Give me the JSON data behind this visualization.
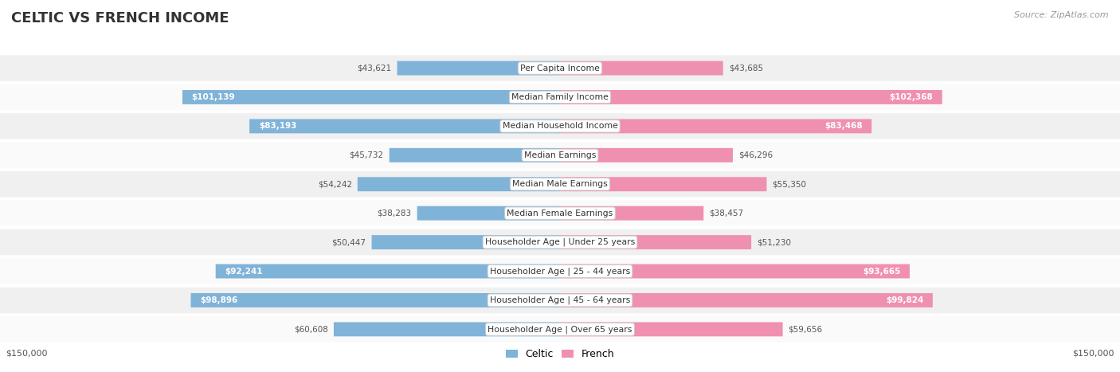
{
  "title": "CELTIC VS FRENCH INCOME",
  "source": "Source: ZipAtlas.com",
  "categories": [
    "Per Capita Income",
    "Median Family Income",
    "Median Household Income",
    "Median Earnings",
    "Median Male Earnings",
    "Median Female Earnings",
    "Householder Age | Under 25 years",
    "Householder Age | 25 - 44 years",
    "Householder Age | 45 - 64 years",
    "Householder Age | Over 65 years"
  ],
  "celtic_values": [
    43621,
    101139,
    83193,
    45732,
    54242,
    38283,
    50447,
    92241,
    98896,
    60608
  ],
  "french_values": [
    43685,
    102368,
    83468,
    46296,
    55350,
    38457,
    51230,
    93665,
    99824,
    59656
  ],
  "celtic_labels": [
    "$43,621",
    "$101,139",
    "$83,193",
    "$45,732",
    "$54,242",
    "$38,283",
    "$50,447",
    "$92,241",
    "$98,896",
    "$60,608"
  ],
  "french_labels": [
    "$43,685",
    "$102,368",
    "$83,468",
    "$46,296",
    "$55,350",
    "$38,457",
    "$51,230",
    "$93,665",
    "$99,824",
    "$59,656"
  ],
  "celtic_color": "#80b3d8",
  "french_color": "#f090b0",
  "french_color_bright": "#e8608a",
  "celtic_color_bright": "#5090c8",
  "max_value": 150000,
  "background_color": "#ffffff",
  "row_bg_even": "#f0f0f0",
  "row_bg_odd": "#fafafa",
  "title_color": "#333333",
  "source_color": "#999999",
  "inside_threshold": 62000,
  "label_color_outside": "#555555",
  "label_color_inside": "#ffffff"
}
